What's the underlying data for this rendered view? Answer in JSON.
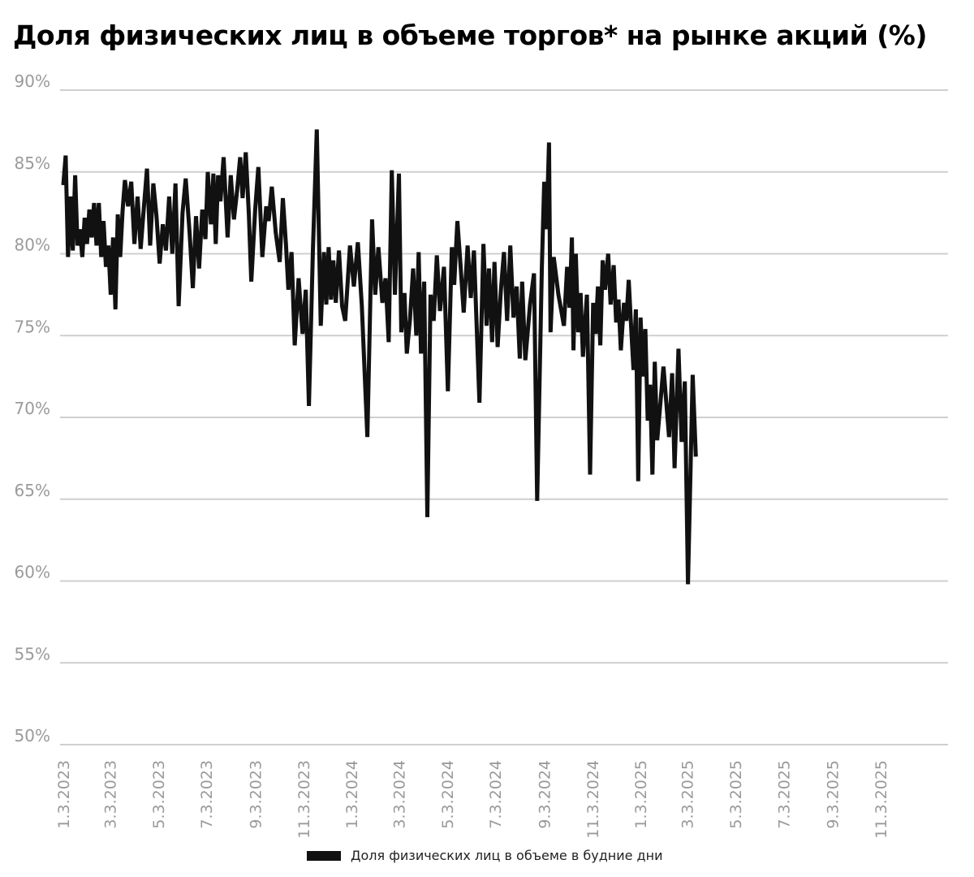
{
  "chart_data": {
    "type": "line",
    "title": "Доля физических лиц в объеме торгов* на рынке акций (%)",
    "xlabel": "",
    "ylabel": "",
    "ylim": [
      50,
      90
    ],
    "ytick_values": [
      50,
      55,
      60,
      65,
      70,
      75,
      80,
      85,
      90
    ],
    "ytick_labels": [
      "50%",
      "55%",
      "60%",
      "65%",
      "70%",
      "75%",
      "80%",
      "85%",
      "90%"
    ],
    "xlim": [
      "2023-01-01",
      "2025-11-01"
    ],
    "xtick_values": [
      "2023-01-01",
      "2023-03-01",
      "2023-05-01",
      "2023-07-01",
      "2023-09-01",
      "2023-11-01",
      "2024-01-01",
      "2024-03-01",
      "2024-05-01",
      "2024-07-01",
      "2024-09-01",
      "2024-11-01",
      "2025-01-01",
      "2025-03-01",
      "2025-05-01",
      "2025-07-01",
      "2025-09-01",
      "2025-11-01"
    ],
    "xtick_labels": [
      "1.3.2023",
      "3.3.2023",
      "5.3.2023",
      "7.3.2023",
      "9.3.2023",
      "11.3.2023",
      "1.3.2024",
      "3.3.2024",
      "5.3.2024",
      "7.3.2024",
      "9.3.2024",
      "11.3.2024",
      "1.3.2025",
      "3.3.2025",
      "5.3.2025",
      "7.3.2025",
      "9.3.2025",
      "11.3.2025"
    ],
    "grid": "horizontal",
    "legend_position": "bottom-center",
    "series": [
      {
        "name": "Доля физических лиц в объеме в будние дни",
        "color": "#111111",
        "points": [
          [
            "2023-01-01",
            84.2
          ],
          [
            "2023-01-04",
            86.0
          ],
          [
            "2023-01-07",
            79.8
          ],
          [
            "2023-01-10",
            83.5
          ],
          [
            "2023-01-13",
            80.2
          ],
          [
            "2023-01-16",
            84.8
          ],
          [
            "2023-01-19",
            80.5
          ],
          [
            "2023-01-22",
            81.5
          ],
          [
            "2023-01-25",
            79.8
          ],
          [
            "2023-01-28",
            82.2
          ],
          [
            "2023-01-31",
            80.6
          ],
          [
            "2023-02-03",
            82.7
          ],
          [
            "2023-02-06",
            81.0
          ],
          [
            "2023-02-09",
            83.1
          ],
          [
            "2023-02-12",
            80.5
          ],
          [
            "2023-02-15",
            83.1
          ],
          [
            "2023-02-18",
            79.8
          ],
          [
            "2023-02-21",
            82.0
          ],
          [
            "2023-02-24",
            79.2
          ],
          [
            "2023-02-27",
            80.5
          ],
          [
            "2023-03-02",
            77.5
          ],
          [
            "2023-03-05",
            81.0
          ],
          [
            "2023-03-08",
            76.6
          ],
          [
            "2023-03-11",
            82.4
          ],
          [
            "2023-03-14",
            79.8
          ],
          [
            "2023-03-17",
            82.6
          ],
          [
            "2023-03-20",
            84.5
          ],
          [
            "2023-03-24",
            82.9
          ],
          [
            "2023-03-28",
            84.4
          ],
          [
            "2023-04-01",
            80.6
          ],
          [
            "2023-04-05",
            83.5
          ],
          [
            "2023-04-09",
            80.3
          ],
          [
            "2023-04-13",
            82.8
          ],
          [
            "2023-04-17",
            85.2
          ],
          [
            "2023-04-21",
            80.5
          ],
          [
            "2023-04-25",
            84.3
          ],
          [
            "2023-04-29",
            82.3
          ],
          [
            "2023-05-03",
            79.4
          ],
          [
            "2023-05-07",
            81.8
          ],
          [
            "2023-05-11",
            80.2
          ],
          [
            "2023-05-15",
            83.5
          ],
          [
            "2023-05-19",
            80.0
          ],
          [
            "2023-05-23",
            84.3
          ],
          [
            "2023-05-27",
            76.8
          ],
          [
            "2023-06-01",
            82.5
          ],
          [
            "2023-06-05",
            84.6
          ],
          [
            "2023-06-10",
            81.2
          ],
          [
            "2023-06-14",
            77.9
          ],
          [
            "2023-06-18",
            82.3
          ],
          [
            "2023-06-22",
            79.1
          ],
          [
            "2023-06-26",
            82.7
          ],
          [
            "2023-06-30",
            80.9
          ],
          [
            "2023-07-03",
            85.0
          ],
          [
            "2023-07-07",
            81.8
          ],
          [
            "2023-07-10",
            84.9
          ],
          [
            "2023-07-13",
            80.6
          ],
          [
            "2023-07-16",
            84.8
          ],
          [
            "2023-07-19",
            83.2
          ],
          [
            "2023-07-23",
            85.9
          ],
          [
            "2023-07-28",
            81.0
          ],
          [
            "2023-08-01",
            84.8
          ],
          [
            "2023-08-05",
            82.1
          ],
          [
            "2023-08-09",
            83.8
          ],
          [
            "2023-08-13",
            85.9
          ],
          [
            "2023-08-16",
            83.4
          ],
          [
            "2023-08-20",
            86.2
          ],
          [
            "2023-08-24",
            82.4
          ],
          [
            "2023-08-27",
            78.3
          ],
          [
            "2023-09-01",
            82.7
          ],
          [
            "2023-09-05",
            85.3
          ],
          [
            "2023-09-10",
            79.8
          ],
          [
            "2023-09-15",
            82.9
          ],
          [
            "2023-09-18",
            82.0
          ],
          [
            "2023-09-22",
            84.1
          ],
          [
            "2023-09-27",
            81.3
          ],
          [
            "2023-10-02",
            79.5
          ],
          [
            "2023-10-06",
            83.4
          ],
          [
            "2023-10-10",
            80.5
          ],
          [
            "2023-10-13",
            77.8
          ],
          [
            "2023-10-17",
            80.1
          ],
          [
            "2023-10-21",
            74.4
          ],
          [
            "2023-10-26",
            78.5
          ],
          [
            "2023-10-31",
            75.1
          ],
          [
            "2023-11-04",
            77.8
          ],
          [
            "2023-11-08",
            70.7
          ],
          [
            "2023-11-13",
            80.2
          ],
          [
            "2023-11-18",
            87.6
          ],
          [
            "2023-11-23",
            75.6
          ],
          [
            "2023-11-27",
            80.1
          ],
          [
            "2023-11-30",
            76.9
          ],
          [
            "2023-12-03",
            80.4
          ],
          [
            "2023-12-06",
            77.2
          ],
          [
            "2023-12-09",
            79.6
          ],
          [
            "2023-12-12",
            77.0
          ],
          [
            "2023-12-16",
            80.2
          ],
          [
            "2023-12-20",
            76.8
          ],
          [
            "2023-12-24",
            75.9
          ],
          [
            "2023-12-30",
            80.5
          ],
          [
            "2024-01-04",
            78.0
          ],
          [
            "2024-01-09",
            80.7
          ],
          [
            "2024-01-14",
            76.8
          ],
          [
            "2024-01-21",
            68.8
          ],
          [
            "2024-01-27",
            82.1
          ],
          [
            "2024-01-31",
            77.5
          ],
          [
            "2024-02-04",
            80.4
          ],
          [
            "2024-02-09",
            77.0
          ],
          [
            "2024-02-13",
            78.5
          ],
          [
            "2024-02-17",
            74.6
          ],
          [
            "2024-02-21",
            85.1
          ],
          [
            "2024-02-25",
            77.5
          ],
          [
            "2024-03-01",
            84.9
          ],
          [
            "2024-03-04",
            75.2
          ],
          [
            "2024-03-08",
            77.6
          ],
          [
            "2024-03-11",
            73.9
          ],
          [
            "2024-03-15",
            76.0
          ],
          [
            "2024-03-19",
            79.1
          ],
          [
            "2024-03-23",
            75.0
          ],
          [
            "2024-03-26",
            80.1
          ],
          [
            "2024-03-29",
            73.9
          ],
          [
            "2024-04-02",
            78.3
          ],
          [
            "2024-04-06",
            63.9
          ],
          [
            "2024-04-10",
            77.5
          ],
          [
            "2024-04-14",
            75.9
          ],
          [
            "2024-04-18",
            79.9
          ],
          [
            "2024-04-22",
            76.5
          ],
          [
            "2024-04-27",
            79.2
          ],
          [
            "2024-05-02",
            71.6
          ],
          [
            "2024-05-07",
            80.4
          ],
          [
            "2024-05-10",
            78.1
          ],
          [
            "2024-05-14",
            82.0
          ],
          [
            "2024-05-18",
            79.3
          ],
          [
            "2024-05-22",
            76.4
          ],
          [
            "2024-05-27",
            80.5
          ],
          [
            "2024-05-31",
            77.3
          ],
          [
            "2024-06-04",
            80.2
          ],
          [
            "2024-06-11",
            70.9
          ],
          [
            "2024-06-16",
            80.6
          ],
          [
            "2024-06-20",
            75.6
          ],
          [
            "2024-06-23",
            79.1
          ],
          [
            "2024-06-27",
            74.6
          ],
          [
            "2024-06-30",
            79.5
          ],
          [
            "2024-07-04",
            74.3
          ],
          [
            "2024-07-08",
            77.7
          ],
          [
            "2024-07-12",
            80.1
          ],
          [
            "2024-07-16",
            75.9
          ],
          [
            "2024-07-20",
            80.5
          ],
          [
            "2024-07-24",
            76.1
          ],
          [
            "2024-07-28",
            78.0
          ],
          [
            "2024-08-01",
            73.6
          ],
          [
            "2024-08-04",
            78.3
          ],
          [
            "2024-08-08",
            73.5
          ],
          [
            "2024-08-14",
            76.9
          ],
          [
            "2024-08-19",
            78.8
          ],
          [
            "2024-08-23",
            64.9
          ],
          [
            "2024-08-29",
            79.2
          ],
          [
            "2024-09-01",
            84.4
          ],
          [
            "2024-09-04",
            81.5
          ],
          [
            "2024-09-07",
            86.8
          ],
          [
            "2024-09-09",
            75.2
          ],
          [
            "2024-09-13",
            79.8
          ],
          [
            "2024-09-19",
            77.5
          ],
          [
            "2024-09-26",
            75.6
          ],
          [
            "2024-09-30",
            79.2
          ],
          [
            "2024-10-03",
            76.7
          ],
          [
            "2024-10-06",
            81.0
          ],
          [
            "2024-10-08",
            74.1
          ],
          [
            "2024-10-11",
            80.0
          ],
          [
            "2024-10-14",
            75.2
          ],
          [
            "2024-10-17",
            77.6
          ],
          [
            "2024-10-20",
            73.7
          ],
          [
            "2024-10-25",
            77.5
          ],
          [
            "2024-10-29",
            66.5
          ],
          [
            "2024-11-02",
            77.0
          ],
          [
            "2024-11-05",
            75.1
          ],
          [
            "2024-11-08",
            78.0
          ],
          [
            "2024-11-11",
            74.4
          ],
          [
            "2024-11-14",
            79.6
          ],
          [
            "2024-11-17",
            77.8
          ],
          [
            "2024-11-21",
            80.0
          ],
          [
            "2024-11-24",
            76.9
          ],
          [
            "2024-11-28",
            79.3
          ],
          [
            "2024-12-01",
            75.8
          ],
          [
            "2024-12-04",
            77.2
          ],
          [
            "2024-12-07",
            74.1
          ],
          [
            "2024-12-11",
            77.0
          ],
          [
            "2024-12-14",
            75.9
          ],
          [
            "2024-12-17",
            78.4
          ],
          [
            "2024-12-20",
            75.6
          ],
          [
            "2024-12-23",
            72.9
          ],
          [
            "2024-12-26",
            76.6
          ],
          [
            "2024-12-29",
            66.1
          ],
          [
            "2025-01-01",
            76.1
          ],
          [
            "2025-01-04",
            72.5
          ],
          [
            "2025-01-07",
            75.4
          ],
          [
            "2025-01-10",
            69.8
          ],
          [
            "2025-01-13",
            72.0
          ],
          [
            "2025-01-16",
            66.5
          ],
          [
            "2025-01-19",
            73.4
          ],
          [
            "2025-01-22",
            68.6
          ],
          [
            "2025-01-26",
            70.8
          ],
          [
            "2025-01-30",
            73.1
          ],
          [
            "2025-02-06",
            68.8
          ],
          [
            "2025-02-10",
            72.7
          ],
          [
            "2025-02-13",
            66.9
          ],
          [
            "2025-02-18",
            74.2
          ],
          [
            "2025-02-22",
            68.5
          ],
          [
            "2025-02-26",
            72.2
          ],
          [
            "2025-03-02",
            59.8
          ],
          [
            "2025-03-08",
            72.6
          ],
          [
            "2025-03-12",
            67.6
          ]
        ]
      }
    ]
  }
}
